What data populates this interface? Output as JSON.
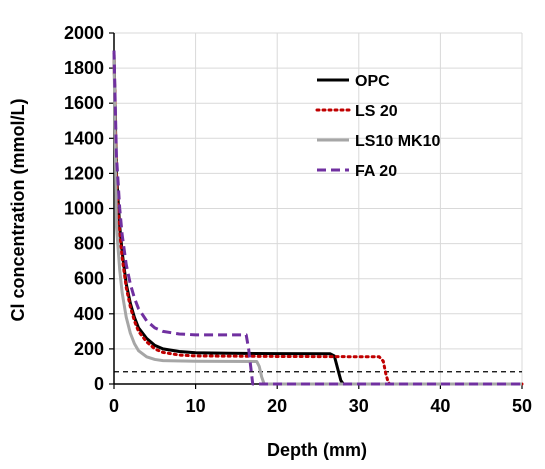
{
  "chart_data": {
    "type": "line",
    "title": "",
    "xlabel": "Depth (mm)",
    "ylabel": "Cl concentration (mmol/L)",
    "xlim": [
      0,
      50
    ],
    "ylim": [
      0,
      2000
    ],
    "xticks": [
      0,
      10,
      20,
      30,
      40,
      50
    ],
    "yticks": [
      0,
      200,
      400,
      600,
      800,
      1000,
      1200,
      1400,
      1600,
      1800,
      2000
    ],
    "grid": true,
    "legend_position": "top-right",
    "reference_line": {
      "y": 70,
      "style": "dashed",
      "color": "#000000"
    },
    "series": [
      {
        "name": "OPC",
        "color": "#000000",
        "style": "solid",
        "points": [
          [
            0,
            1880
          ],
          [
            0.3,
            1200
          ],
          [
            0.7,
            900
          ],
          [
            1,
            750
          ],
          [
            1.5,
            570
          ],
          [
            2,
            460
          ],
          [
            2.5,
            380
          ],
          [
            3,
            320
          ],
          [
            4,
            260
          ],
          [
            5,
            220
          ],
          [
            6,
            200
          ],
          [
            8,
            185
          ],
          [
            10,
            178
          ],
          [
            14,
            175
          ],
          [
            20,
            173
          ],
          [
            26.5,
            172
          ],
          [
            27,
            160
          ],
          [
            27.4,
            90
          ],
          [
            27.8,
            20
          ],
          [
            28.1,
            0
          ],
          [
            50,
            0
          ]
        ]
      },
      {
        "name": "LS 20",
        "color": "#c00000",
        "style": "dotted",
        "points": [
          [
            0,
            1880
          ],
          [
            0.3,
            1150
          ],
          [
            0.7,
            860
          ],
          [
            1,
            720
          ],
          [
            1.5,
            550
          ],
          [
            2,
            440
          ],
          [
            2.5,
            360
          ],
          [
            3,
            300
          ],
          [
            4,
            240
          ],
          [
            5,
            200
          ],
          [
            6,
            180
          ],
          [
            8,
            165
          ],
          [
            10,
            160
          ],
          [
            20,
            157
          ],
          [
            32.5,
            155
          ],
          [
            33,
            130
          ],
          [
            33.3,
            60
          ],
          [
            33.6,
            10
          ],
          [
            33.8,
            0
          ],
          [
            50,
            0
          ]
        ]
      },
      {
        "name": "LS10 MK10",
        "color": "#a6a6a6",
        "style": "solid",
        "points": [
          [
            0,
            1880
          ],
          [
            0.3,
            900
          ],
          [
            0.7,
            650
          ],
          [
            1,
            520
          ],
          [
            1.5,
            380
          ],
          [
            2,
            290
          ],
          [
            2.5,
            230
          ],
          [
            3,
            190
          ],
          [
            4,
            155
          ],
          [
            5,
            140
          ],
          [
            6,
            133
          ],
          [
            10,
            130
          ],
          [
            17.5,
            128
          ],
          [
            17.8,
            100
          ],
          [
            18.1,
            40
          ],
          [
            18.4,
            0
          ],
          [
            50,
            0
          ]
        ]
      },
      {
        "name": "FA 20",
        "color": "#7030a0",
        "style": "dashed",
        "points": [
          [
            0,
            1900
          ],
          [
            0.3,
            1300
          ],
          [
            0.7,
            1000
          ],
          [
            1,
            850
          ],
          [
            1.5,
            680
          ],
          [
            2,
            570
          ],
          [
            2.5,
            490
          ],
          [
            3,
            430
          ],
          [
            4,
            360
          ],
          [
            5,
            320
          ],
          [
            6,
            300
          ],
          [
            8,
            285
          ],
          [
            10,
            280
          ],
          [
            16.2,
            280
          ],
          [
            16.5,
            200
          ],
          [
            16.8,
            80
          ],
          [
            17,
            0
          ],
          [
            50,
            0
          ]
        ]
      }
    ]
  }
}
